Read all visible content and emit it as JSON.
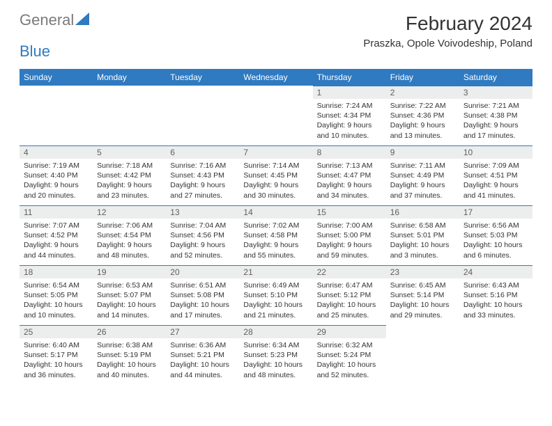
{
  "brand": {
    "part1": "General",
    "part2": "Blue"
  },
  "header": {
    "month_title": "February 2024",
    "location": "Praszka, Opole Voivodeship, Poland"
  },
  "colors": {
    "accent": "#2f7ac0",
    "header_text": "#ffffff",
    "daynum_bg": "#eceded",
    "text": "#333333",
    "logo_gray": "#7a7a7a"
  },
  "day_names": [
    "Sunday",
    "Monday",
    "Tuesday",
    "Wednesday",
    "Thursday",
    "Friday",
    "Saturday"
  ],
  "weeks": [
    [
      null,
      null,
      null,
      null,
      {
        "n": "1",
        "sr": "Sunrise: 7:24 AM",
        "ss": "Sunset: 4:34 PM",
        "dl1": "Daylight: 9 hours",
        "dl2": "and 10 minutes."
      },
      {
        "n": "2",
        "sr": "Sunrise: 7:22 AM",
        "ss": "Sunset: 4:36 PM",
        "dl1": "Daylight: 9 hours",
        "dl2": "and 13 minutes."
      },
      {
        "n": "3",
        "sr": "Sunrise: 7:21 AM",
        "ss": "Sunset: 4:38 PM",
        "dl1": "Daylight: 9 hours",
        "dl2": "and 17 minutes."
      }
    ],
    [
      {
        "n": "4",
        "sr": "Sunrise: 7:19 AM",
        "ss": "Sunset: 4:40 PM",
        "dl1": "Daylight: 9 hours",
        "dl2": "and 20 minutes."
      },
      {
        "n": "5",
        "sr": "Sunrise: 7:18 AM",
        "ss": "Sunset: 4:42 PM",
        "dl1": "Daylight: 9 hours",
        "dl2": "and 23 minutes."
      },
      {
        "n": "6",
        "sr": "Sunrise: 7:16 AM",
        "ss": "Sunset: 4:43 PM",
        "dl1": "Daylight: 9 hours",
        "dl2": "and 27 minutes."
      },
      {
        "n": "7",
        "sr": "Sunrise: 7:14 AM",
        "ss": "Sunset: 4:45 PM",
        "dl1": "Daylight: 9 hours",
        "dl2": "and 30 minutes."
      },
      {
        "n": "8",
        "sr": "Sunrise: 7:13 AM",
        "ss": "Sunset: 4:47 PM",
        "dl1": "Daylight: 9 hours",
        "dl2": "and 34 minutes."
      },
      {
        "n": "9",
        "sr": "Sunrise: 7:11 AM",
        "ss": "Sunset: 4:49 PM",
        "dl1": "Daylight: 9 hours",
        "dl2": "and 37 minutes."
      },
      {
        "n": "10",
        "sr": "Sunrise: 7:09 AM",
        "ss": "Sunset: 4:51 PM",
        "dl1": "Daylight: 9 hours",
        "dl2": "and 41 minutes."
      }
    ],
    [
      {
        "n": "11",
        "sr": "Sunrise: 7:07 AM",
        "ss": "Sunset: 4:52 PM",
        "dl1": "Daylight: 9 hours",
        "dl2": "and 44 minutes."
      },
      {
        "n": "12",
        "sr": "Sunrise: 7:06 AM",
        "ss": "Sunset: 4:54 PM",
        "dl1": "Daylight: 9 hours",
        "dl2": "and 48 minutes."
      },
      {
        "n": "13",
        "sr": "Sunrise: 7:04 AM",
        "ss": "Sunset: 4:56 PM",
        "dl1": "Daylight: 9 hours",
        "dl2": "and 52 minutes."
      },
      {
        "n": "14",
        "sr": "Sunrise: 7:02 AM",
        "ss": "Sunset: 4:58 PM",
        "dl1": "Daylight: 9 hours",
        "dl2": "and 55 minutes."
      },
      {
        "n": "15",
        "sr": "Sunrise: 7:00 AM",
        "ss": "Sunset: 5:00 PM",
        "dl1": "Daylight: 9 hours",
        "dl2": "and 59 minutes."
      },
      {
        "n": "16",
        "sr": "Sunrise: 6:58 AM",
        "ss": "Sunset: 5:01 PM",
        "dl1": "Daylight: 10 hours",
        "dl2": "and 3 minutes."
      },
      {
        "n": "17",
        "sr": "Sunrise: 6:56 AM",
        "ss": "Sunset: 5:03 PM",
        "dl1": "Daylight: 10 hours",
        "dl2": "and 6 minutes."
      }
    ],
    [
      {
        "n": "18",
        "sr": "Sunrise: 6:54 AM",
        "ss": "Sunset: 5:05 PM",
        "dl1": "Daylight: 10 hours",
        "dl2": "and 10 minutes."
      },
      {
        "n": "19",
        "sr": "Sunrise: 6:53 AM",
        "ss": "Sunset: 5:07 PM",
        "dl1": "Daylight: 10 hours",
        "dl2": "and 14 minutes."
      },
      {
        "n": "20",
        "sr": "Sunrise: 6:51 AM",
        "ss": "Sunset: 5:08 PM",
        "dl1": "Daylight: 10 hours",
        "dl2": "and 17 minutes."
      },
      {
        "n": "21",
        "sr": "Sunrise: 6:49 AM",
        "ss": "Sunset: 5:10 PM",
        "dl1": "Daylight: 10 hours",
        "dl2": "and 21 minutes."
      },
      {
        "n": "22",
        "sr": "Sunrise: 6:47 AM",
        "ss": "Sunset: 5:12 PM",
        "dl1": "Daylight: 10 hours",
        "dl2": "and 25 minutes."
      },
      {
        "n": "23",
        "sr": "Sunrise: 6:45 AM",
        "ss": "Sunset: 5:14 PM",
        "dl1": "Daylight: 10 hours",
        "dl2": "and 29 minutes."
      },
      {
        "n": "24",
        "sr": "Sunrise: 6:43 AM",
        "ss": "Sunset: 5:16 PM",
        "dl1": "Daylight: 10 hours",
        "dl2": "and 33 minutes."
      }
    ],
    [
      {
        "n": "25",
        "sr": "Sunrise: 6:40 AM",
        "ss": "Sunset: 5:17 PM",
        "dl1": "Daylight: 10 hours",
        "dl2": "and 36 minutes."
      },
      {
        "n": "26",
        "sr": "Sunrise: 6:38 AM",
        "ss": "Sunset: 5:19 PM",
        "dl1": "Daylight: 10 hours",
        "dl2": "and 40 minutes."
      },
      {
        "n": "27",
        "sr": "Sunrise: 6:36 AM",
        "ss": "Sunset: 5:21 PM",
        "dl1": "Daylight: 10 hours",
        "dl2": "and 44 minutes."
      },
      {
        "n": "28",
        "sr": "Sunrise: 6:34 AM",
        "ss": "Sunset: 5:23 PM",
        "dl1": "Daylight: 10 hours",
        "dl2": "and 48 minutes."
      },
      {
        "n": "29",
        "sr": "Sunrise: 6:32 AM",
        "ss": "Sunset: 5:24 PM",
        "dl1": "Daylight: 10 hours",
        "dl2": "and 52 minutes."
      },
      null,
      null
    ]
  ]
}
